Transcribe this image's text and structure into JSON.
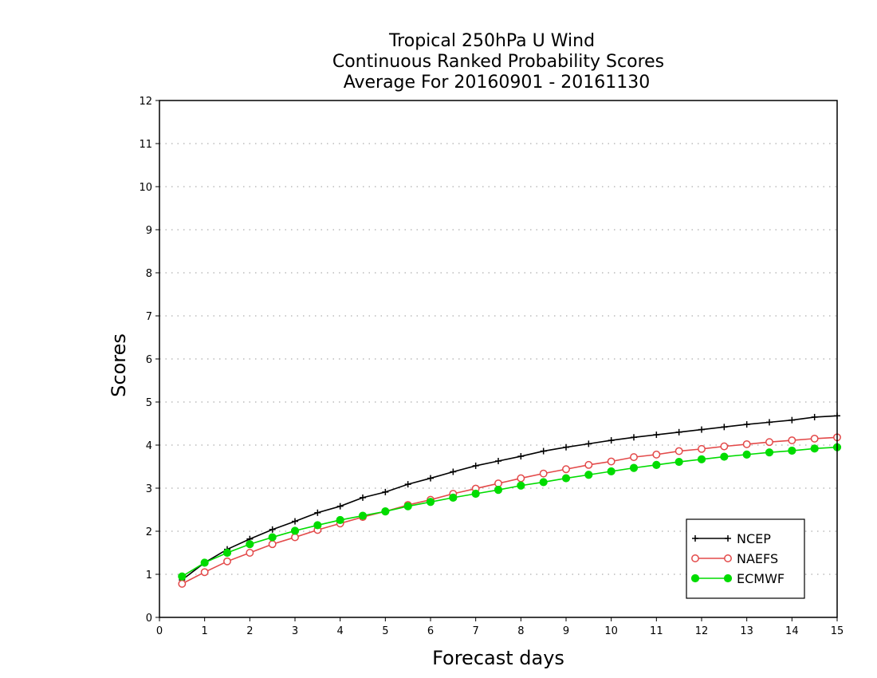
{
  "chart_data": {
    "type": "line",
    "title_lines": [
      "Tropical 250hPa U Wind",
      "Continuous Ranked Probability Scores",
      "Average For 20160901 - 20161130"
    ],
    "xlabel": "Forecast days",
    "ylabel": "Scores",
    "xlim": [
      0,
      15
    ],
    "ylim": [
      0,
      12
    ],
    "x_ticks": [
      0,
      1,
      2,
      3,
      4,
      5,
      6,
      7,
      8,
      9,
      10,
      11,
      12,
      13,
      14,
      15
    ],
    "y_ticks": [
      0,
      1,
      2,
      3,
      4,
      5,
      6,
      7,
      8,
      9,
      10,
      11,
      12
    ],
    "x_tick_labels": [
      "0",
      "1",
      "2",
      "3",
      "4",
      "5",
      "6",
      "7",
      "8",
      "9",
      "10",
      "11",
      "12",
      "13",
      "14",
      "15"
    ],
    "y_tick_labels": [
      "0",
      "1",
      "2",
      "3",
      "4",
      "5",
      "6",
      "7",
      "8",
      "9",
      "10",
      "11",
      "12"
    ],
    "grid": "horizontal dotted",
    "legend_position": "bottom-right",
    "x": [
      0.5,
      1,
      1.5,
      2,
      2.5,
      3,
      3.5,
      4,
      4.5,
      5,
      5.5,
      6,
      6.5,
      7,
      7.5,
      8,
      8.5,
      9,
      9.5,
      10,
      10.5,
      11,
      11.5,
      12,
      12.5,
      13,
      13.5,
      14,
      14.5,
      15
    ],
    "series": [
      {
        "name": "NCEP",
        "color": "#000000",
        "marker": "plus",
        "values": [
          0.87,
          1.27,
          1.58,
          1.82,
          2.04,
          2.23,
          2.43,
          2.58,
          2.78,
          2.91,
          3.09,
          3.23,
          3.38,
          3.52,
          3.63,
          3.74,
          3.86,
          3.95,
          4.03,
          4.11,
          4.18,
          4.24,
          4.3,
          4.36,
          4.42,
          4.48,
          4.53,
          4.58,
          4.65,
          4.68
        ]
      },
      {
        "name": "NAEFS",
        "color": "#e34a4a",
        "marker": "open-circle",
        "values": [
          0.78,
          1.05,
          1.3,
          1.5,
          1.7,
          1.86,
          2.03,
          2.18,
          2.33,
          2.46,
          2.61,
          2.73,
          2.87,
          2.99,
          3.11,
          3.23,
          3.34,
          3.44,
          3.54,
          3.62,
          3.72,
          3.78,
          3.86,
          3.91,
          3.97,
          4.02,
          4.07,
          4.11,
          4.15,
          4.18
        ]
      },
      {
        "name": "ECMWF",
        "color": "#00dc00",
        "marker": "filled-circle",
        "values": [
          0.95,
          1.27,
          1.5,
          1.7,
          1.86,
          2.01,
          2.14,
          2.26,
          2.36,
          2.46,
          2.58,
          2.68,
          2.78,
          2.87,
          2.96,
          3.06,
          3.14,
          3.23,
          3.31,
          3.39,
          3.47,
          3.54,
          3.61,
          3.67,
          3.73,
          3.78,
          3.83,
          3.87,
          3.92,
          3.95
        ]
      }
    ]
  }
}
